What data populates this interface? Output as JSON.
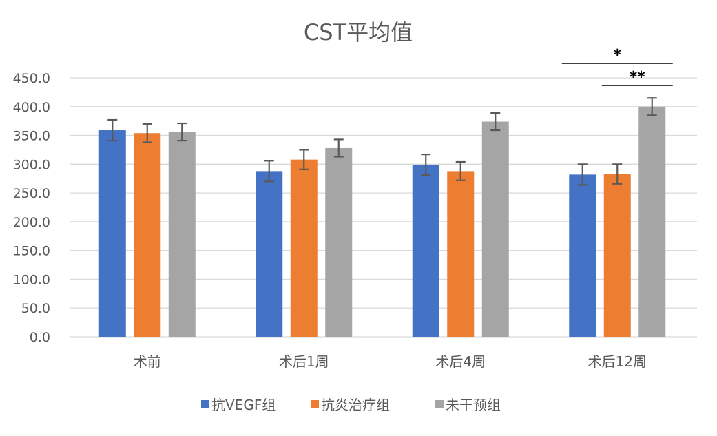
{
  "chart_data": {
    "type": "bar",
    "title": "CST平均值",
    "xlabel": "",
    "ylabel": "",
    "ylim": [
      0,
      450
    ],
    "yticks": [
      0,
      50,
      100,
      150,
      200,
      250,
      300,
      350,
      400,
      450
    ],
    "ytick_labels": [
      "0.0",
      "50.0",
      "100.0",
      "150.0",
      "200.0",
      "250.0",
      "300.0",
      "350.0",
      "400.0",
      "450.0"
    ],
    "grid": true,
    "legend_position": "bottom",
    "categories": [
      "术前",
      "术后1周",
      "术后4周",
      "术后12周"
    ],
    "series": [
      {
        "name": "抗VEGF组",
        "color": "#4472c4",
        "values": [
          359,
          288,
          299,
          282
        ],
        "errors": [
          18,
          18,
          18,
          18
        ]
      },
      {
        "name": "抗炎治疗组",
        "color": "#ed7d31",
        "values": [
          354,
          308,
          288,
          283
        ],
        "errors": [
          16,
          17,
          16,
          17
        ]
      },
      {
        "name": "未干预组",
        "color": "#a5a5a5",
        "values": [
          356,
          328,
          374,
          400
        ],
        "errors": [
          15,
          15,
          15,
          15
        ]
      }
    ],
    "annotations": [
      {
        "label": "*",
        "category": "术后12周",
        "from_series": "抗VEGF组",
        "to_series": "未干预组"
      },
      {
        "label": "**",
        "category": "术后12周",
        "from_series": "抗炎治疗组",
        "to_series": "未干预组"
      }
    ]
  }
}
